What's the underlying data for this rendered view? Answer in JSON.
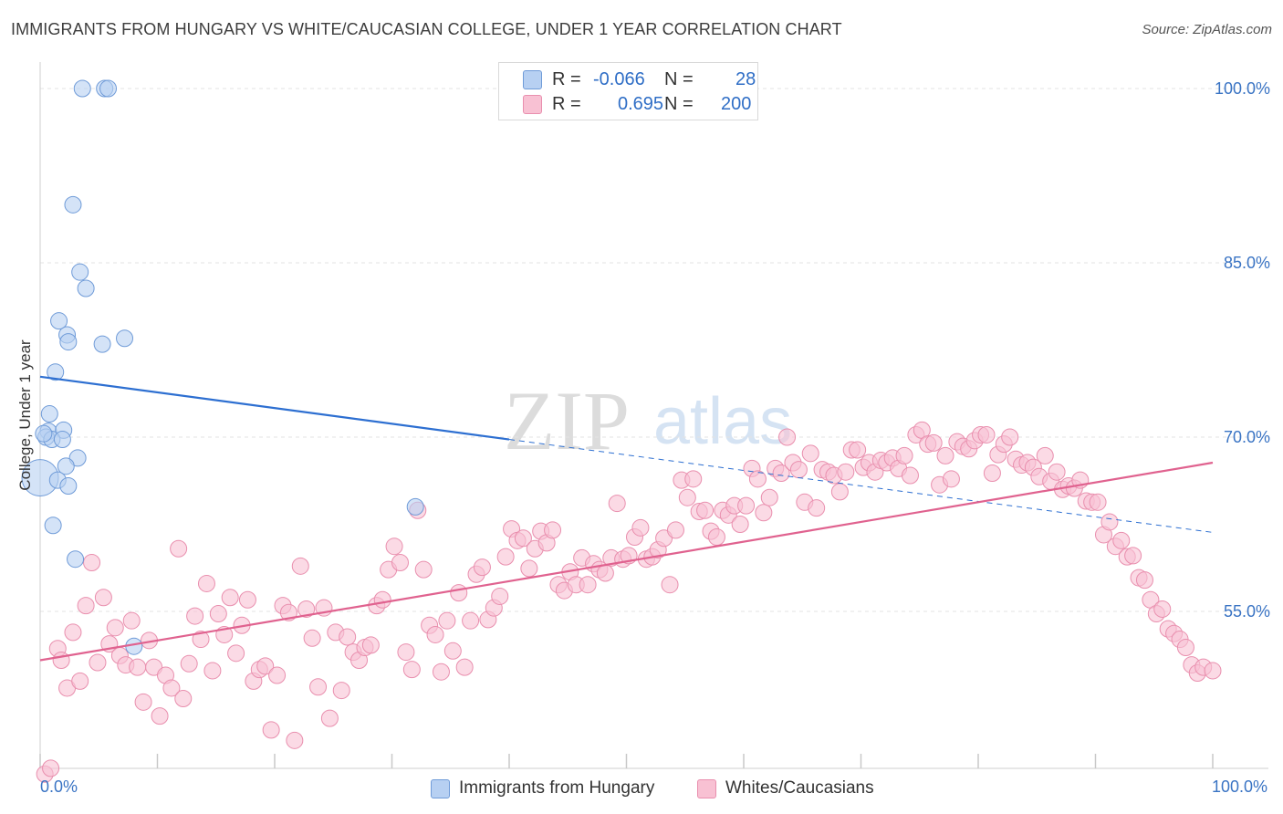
{
  "title": "IMMIGRANTS FROM HUNGARY VS WHITE/CAUCASIAN COLLEGE, UNDER 1 YEAR CORRELATION CHART",
  "source": "Source: ZipAtlas.com",
  "watermark": {
    "part1": "ZIP",
    "part2": "atlas"
  },
  "colors": {
    "blue_fill": "#b7d0f2",
    "blue_stroke": "#6f9bd8",
    "blue_line": "#2d6fd1",
    "pink_fill": "#f8c1d3",
    "pink_stroke": "#e98fae",
    "pink_line": "#e0628f",
    "tick_text": "#3a74c4",
    "grid": "#e3e3e3"
  },
  "legend_top": {
    "blue": {
      "r_label": "R =",
      "r_value": "-0.066",
      "n_label": "N =",
      "n_value": "28"
    },
    "pink": {
      "r_label": "R =",
      "r_value": "0.695",
      "n_label": "N =",
      "n_value": "200"
    }
  },
  "chart_data": {
    "type": "scatter",
    "title": "IMMIGRANTS FROM HUNGARY VS WHITE/CAUCASIAN COLLEGE, UNDER 1 YEAR CORRELATION CHART",
    "xlabel": "",
    "ylabel": "College, Under 1 year",
    "xlim": [
      0,
      100
    ],
    "ylim": [
      40,
      102
    ],
    "x_ticks": [
      0,
      10,
      20,
      30,
      40,
      50,
      60,
      70,
      80,
      90,
      100
    ],
    "x_tick_labels": {
      "left": "0.0%",
      "right": "100.0%"
    },
    "y_gridlines": [
      55,
      70,
      85,
      100
    ],
    "y_tick_labels": [
      "100.0%",
      "85.0%",
      "70.0%",
      "55.0%"
    ],
    "legend": [
      "Immigrants from Hungary",
      "Whites/Caucasians"
    ],
    "series": [
      {
        "name": "Immigrants from Hungary",
        "color": "blue",
        "points": [
          [
            3.6,
            100
          ],
          [
            5.5,
            100
          ],
          [
            5.8,
            100
          ],
          [
            2.8,
            90
          ],
          [
            3.4,
            84.2
          ],
          [
            3.9,
            82.8
          ],
          [
            1.6,
            80
          ],
          [
            2.3,
            78.8
          ],
          [
            2.4,
            78.2
          ],
          [
            5.3,
            78
          ],
          [
            7.2,
            78.5
          ],
          [
            1.3,
            75.6
          ],
          [
            0.8,
            72
          ],
          [
            0.7,
            70.5
          ],
          [
            2.0,
            70.6
          ],
          [
            0.5,
            70
          ],
          [
            1.0,
            69.8
          ],
          [
            1.9,
            69.8
          ],
          [
            3.2,
            68.2
          ],
          [
            0.0,
            66.5
          ],
          [
            2.2,
            67.5
          ],
          [
            1.5,
            66.3
          ],
          [
            2.4,
            65.8
          ],
          [
            1.1,
            62.4
          ],
          [
            3.0,
            59.5
          ],
          [
            8.0,
            52
          ],
          [
            32.0,
            64
          ],
          [
            0.3,
            70.3
          ]
        ],
        "sizes_note": "one larger marker at x=0",
        "trend": {
          "x0": 0,
          "y0": 75.2,
          "x1": 40,
          "y1": 69.8,
          "dash_x1": 100,
          "dash_y1": 61.8
        }
      },
      {
        "name": "Whites/Caucasians",
        "color": "pink",
        "points": [
          [
            0.4,
            41.0
          ],
          [
            0.9,
            41.5
          ],
          [
            1.5,
            51.8
          ],
          [
            1.8,
            50.8
          ],
          [
            2.3,
            48.4
          ],
          [
            2.8,
            53.2
          ],
          [
            3.4,
            49.0
          ],
          [
            3.9,
            55.5
          ],
          [
            4.4,
            59.2
          ],
          [
            4.9,
            50.6
          ],
          [
            5.4,
            56.2
          ],
          [
            5.9,
            52.2
          ],
          [
            6.4,
            53.6
          ],
          [
            6.8,
            51.2
          ],
          [
            7.3,
            50.4
          ],
          [
            7.8,
            54.2
          ],
          [
            8.3,
            50.2
          ],
          [
            8.8,
            47.2
          ],
          [
            9.3,
            52.5
          ],
          [
            9.7,
            50.2
          ],
          [
            10.2,
            46.0
          ],
          [
            10.7,
            49.5
          ],
          [
            11.2,
            48.4
          ],
          [
            11.8,
            60.4
          ],
          [
            12.2,
            47.5
          ],
          [
            12.7,
            50.5
          ],
          [
            13.2,
            54.6
          ],
          [
            13.7,
            52.6
          ],
          [
            14.2,
            57.4
          ],
          [
            14.7,
            49.9
          ],
          [
            15.2,
            54.8
          ],
          [
            15.7,
            53.0
          ],
          [
            16.2,
            56.2
          ],
          [
            16.7,
            51.4
          ],
          [
            17.2,
            53.8
          ],
          [
            17.7,
            56.0
          ],
          [
            18.2,
            49.0
          ],
          [
            18.7,
            50.0
          ],
          [
            19.2,
            50.3
          ],
          [
            19.7,
            44.8
          ],
          [
            20.2,
            49.5
          ],
          [
            20.7,
            55.5
          ],
          [
            21.2,
            54.9
          ],
          [
            21.7,
            43.9
          ],
          [
            22.2,
            58.9
          ],
          [
            22.7,
            55.2
          ],
          [
            23.2,
            52.7
          ],
          [
            23.7,
            48.5
          ],
          [
            24.2,
            55.3
          ],
          [
            24.7,
            45.8
          ],
          [
            25.2,
            53.2
          ],
          [
            25.7,
            48.2
          ],
          [
            26.2,
            52.8
          ],
          [
            26.7,
            51.5
          ],
          [
            27.2,
            50.8
          ],
          [
            27.7,
            51.9
          ],
          [
            28.2,
            52.1
          ],
          [
            28.7,
            55.5
          ],
          [
            29.2,
            56.0
          ],
          [
            29.7,
            58.6
          ],
          [
            30.2,
            60.6
          ],
          [
            30.7,
            59.2
          ],
          [
            31.2,
            51.5
          ],
          [
            31.7,
            50.0
          ],
          [
            32.2,
            63.7
          ],
          [
            32.7,
            58.6
          ],
          [
            33.2,
            53.8
          ],
          [
            33.7,
            53.0
          ],
          [
            34.2,
            49.8
          ],
          [
            34.7,
            54.2
          ],
          [
            35.2,
            51.6
          ],
          [
            35.7,
            56.6
          ],
          [
            36.2,
            50.2
          ],
          [
            36.7,
            54.2
          ],
          [
            37.2,
            58.2
          ],
          [
            37.7,
            58.8
          ],
          [
            38.2,
            54.3
          ],
          [
            38.7,
            55.3
          ],
          [
            39.2,
            56.3
          ],
          [
            39.7,
            59.7
          ],
          [
            40.2,
            62.1
          ],
          [
            40.7,
            61.1
          ],
          [
            41.2,
            61.3
          ],
          [
            41.7,
            58.7
          ],
          [
            42.2,
            60.4
          ],
          [
            42.7,
            61.9
          ],
          [
            43.2,
            60.9
          ],
          [
            43.7,
            62.0
          ],
          [
            44.2,
            57.3
          ],
          [
            44.7,
            56.8
          ],
          [
            45.2,
            58.4
          ],
          [
            45.7,
            57.3
          ],
          [
            46.2,
            59.6
          ],
          [
            46.7,
            57.3
          ],
          [
            47.2,
            59.1
          ],
          [
            47.7,
            58.6
          ],
          [
            48.2,
            58.3
          ],
          [
            48.7,
            59.6
          ],
          [
            49.2,
            64.3
          ],
          [
            49.7,
            59.5
          ],
          [
            50.2,
            59.8
          ],
          [
            50.7,
            61.4
          ],
          [
            51.2,
            62.2
          ],
          [
            51.7,
            59.5
          ],
          [
            52.2,
            59.7
          ],
          [
            52.7,
            60.3
          ],
          [
            53.2,
            61.3
          ],
          [
            53.7,
            57.3
          ],
          [
            54.2,
            62.0
          ],
          [
            54.7,
            66.3
          ],
          [
            55.2,
            64.8
          ],
          [
            55.7,
            66.4
          ],
          [
            56.2,
            63.6
          ],
          [
            56.7,
            63.7
          ],
          [
            57.2,
            61.9
          ],
          [
            57.7,
            61.4
          ],
          [
            58.2,
            63.7
          ],
          [
            58.7,
            63.3
          ],
          [
            59.2,
            64.1
          ],
          [
            59.7,
            62.5
          ],
          [
            60.2,
            64.1
          ],
          [
            60.7,
            67.3
          ],
          [
            61.2,
            66.4
          ],
          [
            61.7,
            63.5
          ],
          [
            62.2,
            64.8
          ],
          [
            62.7,
            67.3
          ],
          [
            63.2,
            66.9
          ],
          [
            63.7,
            70.0
          ],
          [
            64.2,
            67.8
          ],
          [
            64.7,
            67.2
          ],
          [
            65.2,
            64.4
          ],
          [
            65.7,
            68.6
          ],
          [
            66.2,
            63.9
          ],
          [
            66.7,
            67.2
          ],
          [
            67.2,
            67.0
          ],
          [
            67.7,
            66.7
          ],
          [
            68.2,
            65.3
          ],
          [
            68.7,
            67.0
          ],
          [
            69.2,
            68.9
          ],
          [
            69.7,
            68.9
          ],
          [
            70.2,
            67.4
          ],
          [
            70.7,
            67.8
          ],
          [
            71.2,
            67.0
          ],
          [
            71.7,
            68.0
          ],
          [
            72.2,
            67.8
          ],
          [
            72.7,
            68.2
          ],
          [
            73.2,
            67.3
          ],
          [
            73.7,
            68.4
          ],
          [
            74.2,
            66.7
          ],
          [
            74.7,
            70.2
          ],
          [
            75.2,
            70.6
          ],
          [
            75.7,
            69.4
          ],
          [
            76.2,
            69.5
          ],
          [
            76.7,
            65.9
          ],
          [
            77.2,
            68.4
          ],
          [
            77.7,
            66.4
          ],
          [
            78.2,
            69.6
          ],
          [
            78.7,
            69.2
          ],
          [
            79.2,
            69.0
          ],
          [
            79.7,
            69.7
          ],
          [
            80.2,
            70.2
          ],
          [
            80.7,
            70.2
          ],
          [
            81.2,
            66.9
          ],
          [
            81.7,
            68.5
          ],
          [
            82.2,
            69.4
          ],
          [
            82.7,
            70.0
          ],
          [
            83.2,
            68.1
          ],
          [
            83.7,
            67.6
          ],
          [
            84.2,
            67.8
          ],
          [
            84.7,
            67.4
          ],
          [
            85.2,
            66.6
          ],
          [
            85.7,
            68.4
          ],
          [
            86.2,
            66.2
          ],
          [
            86.7,
            67.0
          ],
          [
            87.2,
            65.5
          ],
          [
            87.7,
            65.8
          ],
          [
            88.2,
            65.6
          ],
          [
            88.7,
            66.3
          ],
          [
            89.2,
            64.5
          ],
          [
            89.7,
            64.4
          ],
          [
            90.2,
            64.4
          ],
          [
            90.7,
            61.6
          ],
          [
            91.2,
            62.7
          ],
          [
            91.7,
            60.6
          ],
          [
            92.2,
            61.1
          ],
          [
            92.7,
            59.7
          ],
          [
            93.2,
            59.8
          ],
          [
            93.7,
            57.9
          ],
          [
            94.2,
            57.7
          ],
          [
            94.7,
            56.0
          ],
          [
            95.2,
            54.8
          ],
          [
            95.7,
            55.2
          ],
          [
            96.2,
            53.5
          ],
          [
            96.7,
            53.1
          ],
          [
            97.2,
            52.6
          ],
          [
            97.7,
            51.9
          ],
          [
            98.2,
            50.4
          ],
          [
            98.7,
            49.7
          ],
          [
            99.2,
            50.2
          ],
          [
            100.0,
            49.9
          ]
        ],
        "trend": {
          "x0": 0,
          "y0": 50.8,
          "x1": 100,
          "y1": 67.8
        }
      }
    ]
  }
}
